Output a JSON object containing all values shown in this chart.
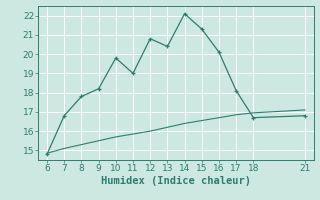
{
  "xlabel": "Humidex (Indice chaleur)",
  "background_color": "#cce8e0",
  "grid_color": "#ffffff",
  "line_color": "#2e7d6e",
  "line1_x": [
    6,
    7,
    8,
    9,
    10,
    11,
    12,
    13,
    14,
    15,
    16,
    17,
    18,
    21
  ],
  "line1_y": [
    14.8,
    16.8,
    17.8,
    18.2,
    19.8,
    19.0,
    20.8,
    20.4,
    22.1,
    21.3,
    20.1,
    18.1,
    16.7,
    16.8
  ],
  "line2_x": [
    6,
    7,
    8,
    9,
    10,
    11,
    12,
    13,
    14,
    15,
    16,
    17,
    18,
    21
  ],
  "line2_y": [
    14.85,
    15.1,
    15.3,
    15.5,
    15.7,
    15.85,
    16.0,
    16.2,
    16.4,
    16.55,
    16.7,
    16.85,
    16.95,
    17.1
  ],
  "xlim": [
    5.5,
    21.5
  ],
  "ylim": [
    14.5,
    22.5
  ],
  "xticks": [
    6,
    7,
    8,
    9,
    10,
    11,
    12,
    13,
    14,
    15,
    16,
    17,
    18,
    21
  ],
  "yticks": [
    15,
    16,
    17,
    18,
    19,
    20,
    21,
    22
  ],
  "tick_fontsize": 6.5,
  "xlabel_fontsize": 7.5
}
